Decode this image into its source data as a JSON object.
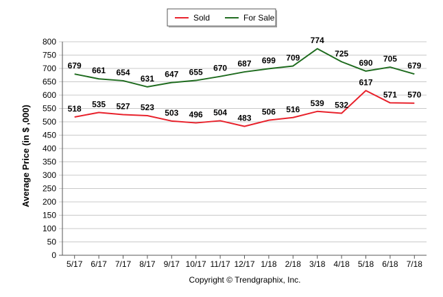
{
  "chart_data": {
    "type": "line",
    "categories": [
      "5/17",
      "6/17",
      "7/17",
      "8/17",
      "9/17",
      "10/17",
      "11/17",
      "12/17",
      "1/18",
      "2/18",
      "3/18",
      "4/18",
      "5/18",
      "6/18",
      "7/18"
    ],
    "series": [
      {
        "name": "Sold",
        "color": "#e8202a",
        "values": [
          518,
          535,
          527,
          523,
          503,
          496,
          504,
          483,
          506,
          516,
          539,
          532,
          617,
          571,
          570
        ]
      },
      {
        "name": "For Sale",
        "color": "#1e6b1e",
        "values": [
          679,
          661,
          654,
          631,
          647,
          655,
          670,
          687,
          699,
          709,
          774,
          725,
          690,
          705,
          679
        ]
      }
    ],
    "yticks": [
      0,
      50,
      100,
      150,
      200,
      250,
      300,
      350,
      400,
      450,
      500,
      550,
      600,
      650,
      700,
      750,
      800
    ],
    "ylim": [
      0,
      800
    ],
    "ylabel": "Average Price (in $ ,000)",
    "xlabel": "",
    "grid": true,
    "legend_position": "top-center",
    "credit": "Copyright © Trendgraphix, Inc."
  }
}
